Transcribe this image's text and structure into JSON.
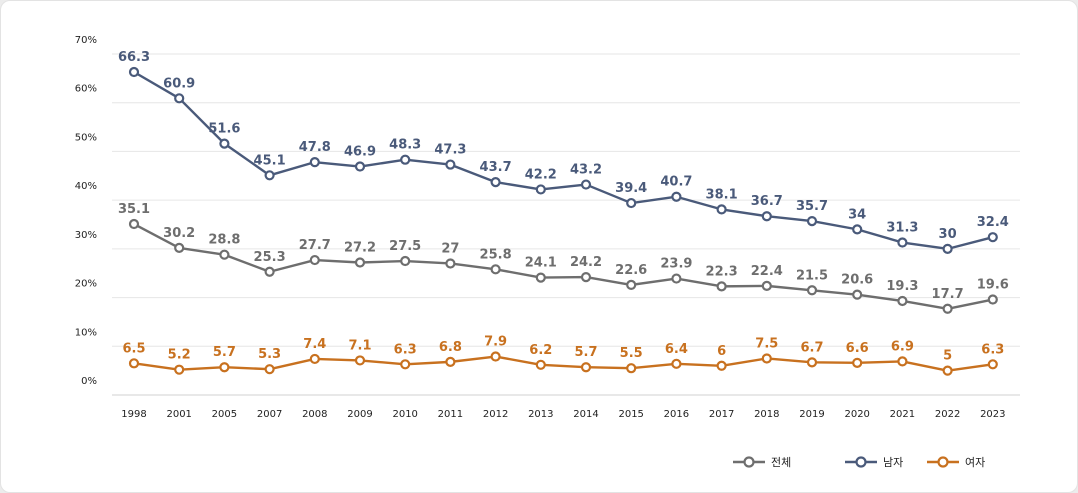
{
  "chart_data": {
    "type": "line",
    "categories": [
      "1998",
      "2001",
      "2005",
      "2007",
      "2008",
      "2009",
      "2010",
      "2011",
      "2012",
      "2013",
      "2014",
      "2015",
      "2016",
      "2017",
      "2018",
      "2019",
      "2020",
      "2021",
      "2022",
      "2023"
    ],
    "y_ticks": [
      "0%",
      "10%",
      "20%",
      "30%",
      "40%",
      "50%",
      "60%",
      "70%"
    ],
    "ylim": [
      0,
      70
    ],
    "grid": true,
    "legend_position": "bottom-right",
    "series": [
      {
        "name": "전체",
        "color": "#6e6e6e",
        "values": [
          35.1,
          30.2,
          28.8,
          25.3,
          27.7,
          27.2,
          27.5,
          27,
          25.8,
          24.1,
          24.2,
          22.6,
          23.9,
          22.3,
          22.4,
          21.5,
          20.6,
          19.3,
          17.7,
          19.6
        ],
        "labels": [
          "35.1",
          "30.2",
          "28.8",
          "25.3",
          "27.7",
          "27.2",
          "27.5",
          "27",
          "25.8",
          "24.1",
          "24.2",
          "22.6",
          "23.9",
          "22.3",
          "22.4",
          "21.5",
          "20.6",
          "19.3",
          "17.7",
          "19.6"
        ]
      },
      {
        "name": "남자",
        "color": "#4a5a7a",
        "values": [
          66.3,
          60.9,
          51.6,
          45.1,
          47.8,
          46.9,
          48.3,
          47.3,
          43.7,
          42.2,
          43.2,
          39.4,
          40.7,
          38.1,
          36.7,
          35.7,
          34,
          31.3,
          30,
          32.4
        ],
        "labels": [
          "66.3",
          "60.9",
          "51.6",
          "45.1",
          "47.8",
          "46.9",
          "48.3",
          "47.3",
          "43.7",
          "42.2",
          "43.2",
          "39.4",
          "40.7",
          "38.1",
          "36.7",
          "35.7",
          "34",
          "31.3",
          "30",
          "32.4"
        ]
      },
      {
        "name": "여자",
        "color": "#c8711f",
        "values": [
          6.5,
          5.2,
          5.7,
          5.3,
          7.4,
          7.1,
          6.3,
          6.8,
          7.9,
          6.2,
          5.7,
          5.5,
          6.4,
          6,
          7.5,
          6.7,
          6.6,
          6.9,
          5,
          6.3
        ],
        "labels": [
          "6.5",
          "5.2",
          "5.7",
          "5.3",
          "7.4",
          "7.1",
          "6.3",
          "6.8",
          "7.9",
          "6.2",
          "5.7",
          "5.5",
          "6.4",
          "6",
          "7.5",
          "6.7",
          "6.6",
          "6.9",
          "5",
          "6.3"
        ]
      }
    ]
  }
}
